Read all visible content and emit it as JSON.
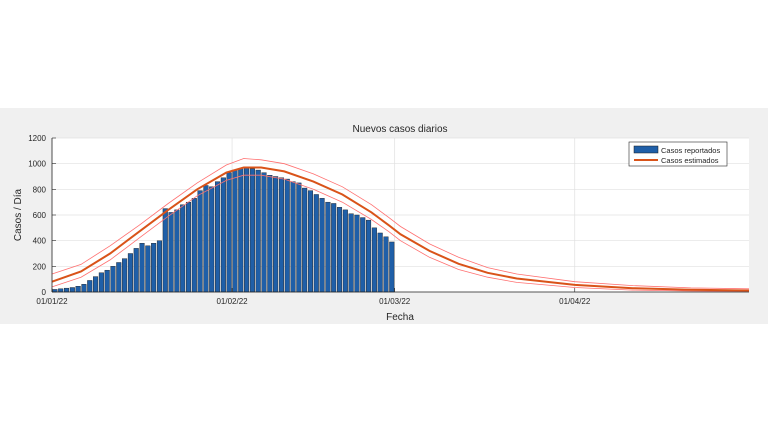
{
  "chart_data": {
    "type": "bar",
    "title": "Nuevos casos diarios",
    "xlabel": "Fecha",
    "ylabel": "Casos / Día",
    "ylim": [
      0,
      1200
    ],
    "yticks": [
      0,
      200,
      400,
      600,
      800,
      1000,
      1200
    ],
    "xlim_days": [
      0,
      120
    ],
    "xticks": [
      {
        "day": 0,
        "label": "01/01/22"
      },
      {
        "day": 31,
        "label": "01/02/22"
      },
      {
        "day": 59,
        "label": "01/03/22"
      },
      {
        "day": 90,
        "label": "01/04/22"
      }
    ],
    "grid": true,
    "legend": {
      "position": "top-right",
      "entries": [
        {
          "label": "Casos reportados",
          "color": "#1f5fa8"
        },
        {
          "label": "Casos estimados",
          "color": "#d95319"
        }
      ]
    },
    "series": [
      {
        "name": "Casos reportados",
        "kind": "bar",
        "start_date": "01/01/22",
        "values": [
          20,
          25,
          30,
          35,
          45,
          60,
          90,
          120,
          150,
          170,
          200,
          230,
          260,
          300,
          340,
          380,
          360,
          380,
          400,
          650,
          620,
          640,
          680,
          700,
          730,
          790,
          830,
          820,
          860,
          890,
          930,
          950,
          960,
          970,
          960,
          950,
          930,
          910,
          900,
          890,
          880,
          860,
          850,
          810,
          790,
          760,
          730,
          700,
          690,
          660,
          640,
          610,
          600,
          580,
          560,
          500,
          460,
          430,
          390
        ],
        "color": "#1f5fa8"
      },
      {
        "name": "Casos estimados",
        "kind": "line",
        "color": "#d95319",
        "x_days": [
          0,
          5,
          10,
          15,
          20,
          25,
          30,
          33,
          36,
          40,
          45,
          50,
          55,
          58,
          60,
          65,
          70,
          75,
          80,
          90,
          100,
          110,
          120
        ],
        "values": [
          80,
          160,
          300,
          470,
          640,
          800,
          930,
          970,
          970,
          940,
          860,
          760,
          620,
          520,
          450,
          320,
          220,
          150,
          105,
          55,
          30,
          18,
          12
        ],
        "band_upper": [
          140,
          215,
          360,
          520,
          690,
          850,
          990,
          1040,
          1030,
          1000,
          920,
          820,
          680,
          580,
          510,
          375,
          270,
          190,
          140,
          80,
          50,
          32,
          25
        ],
        "band_lower": [
          40,
          115,
          250,
          420,
          590,
          750,
          870,
          910,
          910,
          880,
          800,
          700,
          565,
          470,
          400,
          270,
          175,
          115,
          75,
          35,
          15,
          8,
          5
        ],
        "band_color": "#ff7070"
      }
    ]
  }
}
